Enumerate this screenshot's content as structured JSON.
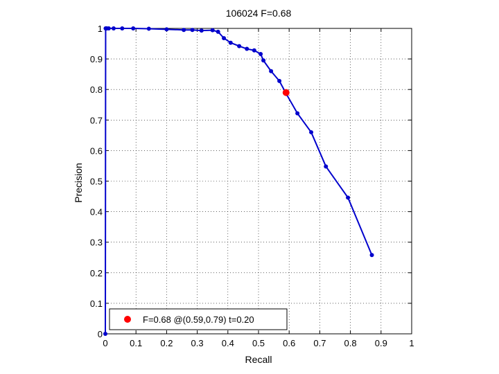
{
  "chart_data": {
    "type": "line",
    "title": "106024 F=0.68",
    "xlabel": "Recall",
    "ylabel": "Precision",
    "xlim": [
      0,
      1
    ],
    "ylim": [
      0,
      1
    ],
    "x_ticks": [
      0,
      0.1,
      0.2,
      0.3,
      0.4,
      0.5,
      0.6,
      0.7,
      0.8,
      0.9,
      1
    ],
    "y_ticks": [
      0,
      0.1,
      0.2,
      0.3,
      0.4,
      0.5,
      0.6,
      0.7,
      0.8,
      0.9,
      1
    ],
    "x_tick_labels": [
      "0",
      "0.1",
      "0.2",
      "0.3",
      "0.4",
      "0.5",
      "0.6",
      "0.7",
      "0.8",
      "0.9",
      "1"
    ],
    "y_tick_labels": [
      "0",
      "0.1",
      "0.2",
      "0.3",
      "0.4",
      "0.5",
      "0.6",
      "0.7",
      "0.8",
      "0.9",
      "1"
    ],
    "grid": true,
    "series": [
      {
        "color": "#0000cc",
        "points": [
          [
            0.87,
            0.258
          ],
          [
            0.792,
            0.446
          ],
          [
            0.72,
            0.548
          ],
          [
            0.672,
            0.66
          ],
          [
            0.627,
            0.722
          ],
          [
            0.591,
            0.785
          ],
          [
            0.568,
            0.828
          ],
          [
            0.541,
            0.86
          ],
          [
            0.516,
            0.895
          ],
          [
            0.507,
            0.916
          ],
          [
            0.486,
            0.928
          ],
          [
            0.462,
            0.933
          ],
          [
            0.437,
            0.942
          ],
          [
            0.409,
            0.953
          ],
          [
            0.387,
            0.968
          ],
          [
            0.368,
            0.989
          ],
          [
            0.35,
            0.994
          ],
          [
            0.314,
            0.993
          ],
          [
            0.284,
            0.995
          ],
          [
            0.256,
            0.995
          ],
          [
            0.2,
            0.997
          ],
          [
            0.142,
            0.999
          ],
          [
            0.091,
            1.0
          ],
          [
            0.055,
            1.0
          ],
          [
            0.027,
            1.0
          ],
          [
            0.011,
            1.0
          ],
          [
            0.005,
            1.0
          ],
          [
            0.002,
            1.0
          ],
          [
            0.001,
            1.0
          ],
          [
            0.0,
            0.0
          ]
        ]
      }
    ],
    "best_point": {
      "x": 0.59,
      "y": 0.79,
      "color": "#ff0000"
    },
    "legend": {
      "label": "F=0.68 @(0.59,0.79) t=0.20",
      "placement": "bottom-left"
    }
  }
}
